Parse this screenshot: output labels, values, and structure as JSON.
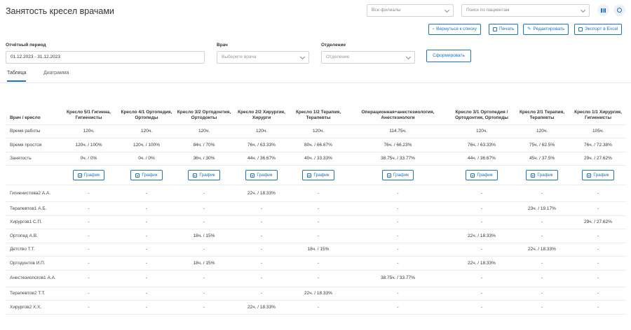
{
  "header": {
    "title": "Занятость кресел врачами",
    "branch_select": "Все филиалы",
    "patient_search_placeholder": "Поиск по пациентам"
  },
  "actions": {
    "back": "Вернуться к списку",
    "print": "Печать",
    "edit": "Редактировать",
    "export": "Экспорт в Excel"
  },
  "filters": {
    "period_label": "Отчётный период",
    "period_value": "01.12.2023 - 31.12.2023",
    "doctor_label": "Врач",
    "doctor_placeholder": "Выберите врача",
    "department_label": "Отделение",
    "department_placeholder": "Отделение",
    "generate": "Сформировать"
  },
  "tabs": [
    "Таблица",
    "Диаграмма"
  ],
  "table": {
    "corner": "Врач / кресло",
    "columns": [
      "Кресло 5/1 Гигиена, Гигиенисты",
      "Кресло 4/1 Ортопедия, Ортопеды",
      "Кресло 3/2 Ортодонтия, Ортодонты",
      "Кресло 2/2 Хирургия, Хирурги",
      "Кресло 1/2 Терапия, Терапевты",
      "Операционная+анестезиология, Анестезиологи",
      "Кресло 3/1 Ортопедия / Ортодонтия, Ортопеды",
      "Кресло 2/1 Терапия, Терапевты",
      "Кресло 1/1 Хирургия, Гигиенисты"
    ],
    "summary": [
      {
        "label": "Время работы",
        "cells": [
          "120ч.",
          "120ч.",
          "120ч.",
          "120ч.",
          "120ч.",
          "114.75ч.",
          "120ч.",
          "120ч.",
          "105ч."
        ]
      },
      {
        "label": "Время простоя",
        "cells": [
          "120ч. / 100%",
          "120ч. / 100%",
          "84ч. / 70%",
          "76ч. / 63.33%",
          "80ч. / 66.67%",
          "76ч. / 66.23%",
          "76ч. / 63.33%",
          "75ч. / 62.5%",
          "76ч. / 72.38%"
        ]
      },
      {
        "label": "Занятость",
        "cells": [
          "0ч. / 0%",
          "0ч. / 0%",
          "36ч. / 30%",
          "44ч. / 36.67%",
          "40ч. / 33.33%",
          "38.75ч. / 33.77%",
          "44ч. / 36.67%",
          "45ч. / 37.5%",
          "29ч. / 27.62%"
        ]
      }
    ],
    "chart_button": "График",
    "doctors": [
      {
        "name": "Гигиенистова2 А.А.",
        "cells": [
          "-",
          "-",
          "-",
          "22ч. / 18.33%",
          "-",
          "-",
          "-",
          "-",
          "-"
        ]
      },
      {
        "name": "Терапевтов1 А.Б.",
        "cells": [
          "-",
          "-",
          "-",
          "-",
          "-",
          "-",
          "-",
          "23ч. / 19.17%",
          "-"
        ]
      },
      {
        "name": "Хирургов1 С.П.",
        "cells": [
          "-",
          "-",
          "-",
          "-",
          "-",
          "-",
          "-",
          "-",
          "29ч. / 27.62%"
        ]
      },
      {
        "name": "Ортопед А.В.",
        "cells": [
          "-",
          "-",
          "18ч. / 15%",
          "-",
          "-",
          "-",
          "22ч. / 18.33%",
          "-",
          "-"
        ]
      },
      {
        "name": "Детство Т.Т.",
        "cells": [
          "-",
          "-",
          "-",
          "-",
          "18ч. / 15%",
          "-",
          "-",
          "22ч. / 18.33%",
          "-"
        ]
      },
      {
        "name": "Ортодонтов И.П.",
        "cells": [
          "-",
          "-",
          "18ч. / 15%",
          "-",
          "-",
          "-",
          "22ч. / 18.33%",
          "-",
          "-"
        ]
      },
      {
        "name": "Анестезиологов1 А.А.",
        "cells": [
          "-",
          "-",
          "-",
          "-",
          "-",
          "38.75ч. / 33.77%",
          "-",
          "-",
          "-"
        ]
      },
      {
        "name": "Терапевтов2 Т.Т.",
        "cells": [
          "-",
          "-",
          "-",
          "-",
          "22ч. / 18.33%",
          "-",
          "-",
          "-",
          "-"
        ]
      },
      {
        "name": "Хирургов2 Х.Х.",
        "cells": [
          "-",
          "-",
          "-",
          "22ч. / 18.33%",
          "-",
          "-",
          "-",
          "-",
          "-"
        ]
      }
    ]
  }
}
